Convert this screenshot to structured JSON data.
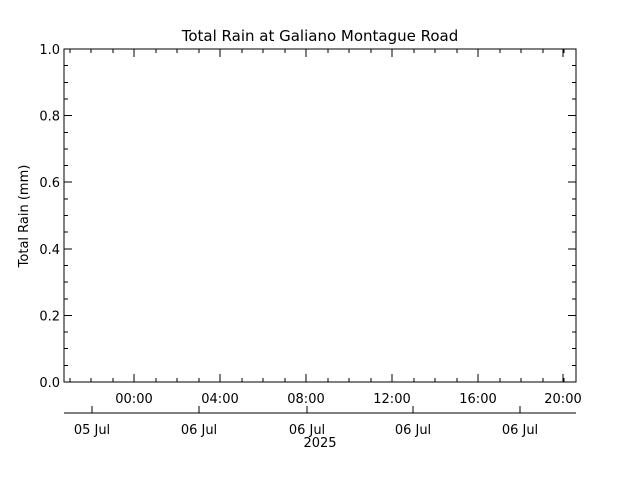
{
  "chart_data": {
    "type": "line",
    "title": "Total Rain at Galiano Montague Road",
    "ylabel": "Total Rain (mm)",
    "xlabel": "",
    "ylim": [
      0.0,
      1.0
    ],
    "yticks": [
      "0.0",
      "0.2",
      "0.4",
      "0.6",
      "0.8",
      "1.0"
    ],
    "x_time_ticks": [
      "00:00",
      "04:00",
      "08:00",
      "12:00",
      "16:00",
      "20:00"
    ],
    "x_date_ticks": [
      "05 Jul",
      "06 Jul",
      "06 Jul",
      "06 Jul",
      "06 Jul"
    ],
    "x_year": "2025",
    "grid": false,
    "series": [
      {
        "values": []
      }
    ]
  }
}
